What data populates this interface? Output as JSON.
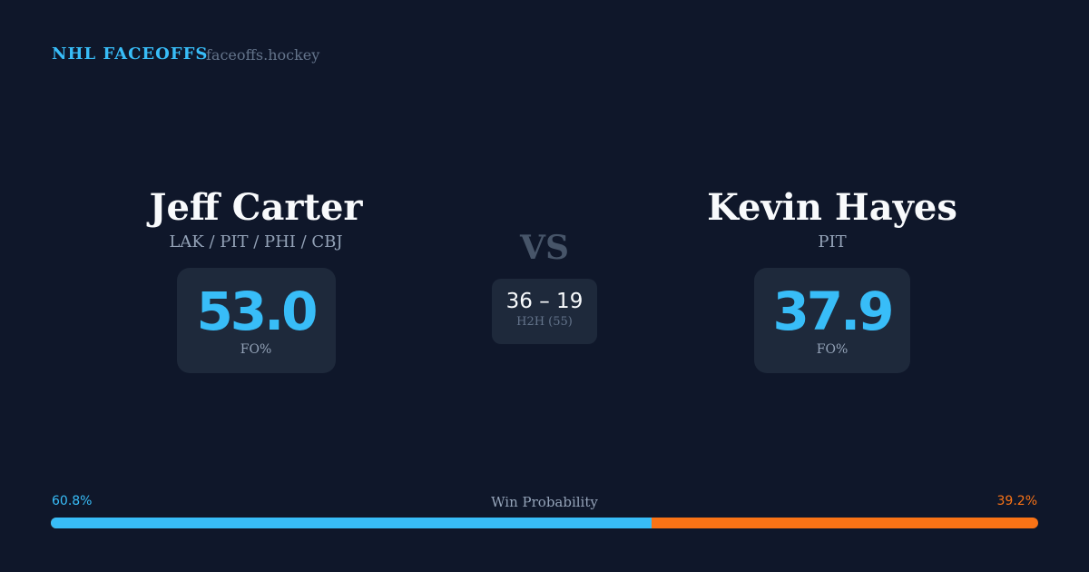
{
  "header": {
    "brand": "NHL FACEOFFS",
    "site": "faceoffs.hockey"
  },
  "left": {
    "name": "Jeff Carter",
    "teams": "LAK / PIT / PHI / CBJ",
    "fo_pct": "53.0",
    "fo_label": "FO%"
  },
  "right": {
    "name": "Kevin Hayes",
    "teams": "PIT",
    "fo_pct": "37.9",
    "fo_label": "FO%"
  },
  "center": {
    "vs": "VS",
    "score": "36 – 19",
    "h2h_label": "H2H (55)"
  },
  "probability": {
    "label": "Win Probability",
    "left": "60.8%",
    "right": "39.2%",
    "left_value": 60.8,
    "colors": {
      "left": "#38bdf8",
      "right": "#f97316"
    }
  }
}
